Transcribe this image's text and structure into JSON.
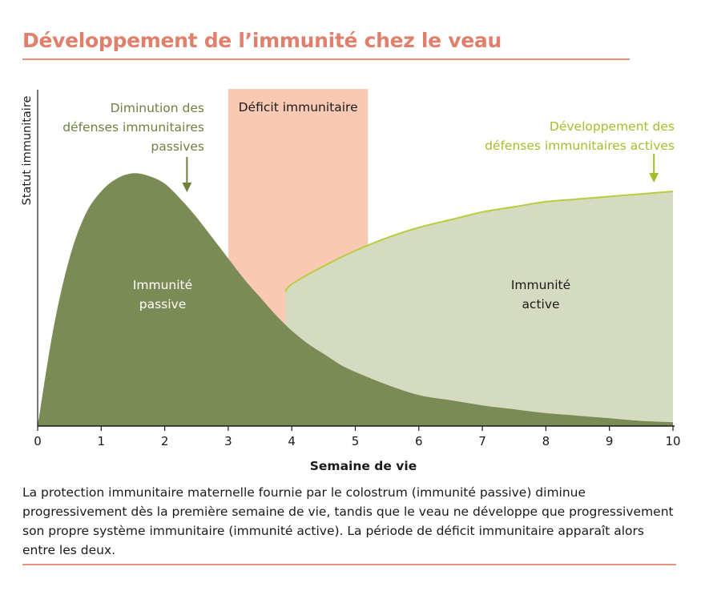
{
  "title": "Développement de l’immunité chez le veau",
  "caption": "La protection immunitaire maternelle fournie par le colostrum (immunité passive) diminue progressivement dès la première semaine de vie, tandis que le veau ne développe que progressivement son propre système immunitaire (immunité active). La période de déficit immunitaire apparaît alors entre les deux.",
  "colors": {
    "title": "#e0806c",
    "rule": "#e8907c",
    "passive_fill": "#7b8b55",
    "active_fill": "#d5dbc1",
    "active_line": "#b9cd3c",
    "deficit_band": "#f9c9b3",
    "passive_label": "#6f8040",
    "active_label": "#a6bd2a"
  },
  "chart_data": {
    "type": "area",
    "xlabel": "Semaine de vie",
    "ylabel": "Statut immunitaire",
    "xlim": [
      0,
      10
    ],
    "xticks": [
      0,
      1,
      2,
      3,
      4,
      5,
      6,
      7,
      8,
      9,
      10
    ],
    "y_ticks_shown": false,
    "grid": false,
    "band": {
      "label": "Déficit immunitaire",
      "x_start": 3,
      "x_end": 5.2
    },
    "series": [
      {
        "name": "Immunité passive",
        "x": [
          0,
          0.25,
          0.5,
          0.75,
          1,
          1.25,
          1.5,
          1.75,
          2,
          2.25,
          2.5,
          2.75,
          3,
          3.25,
          3.5,
          3.75,
          4,
          4.25,
          4.5,
          4.75,
          5,
          5.5,
          6,
          6.5,
          7,
          7.5,
          8,
          8.5,
          9,
          9.5,
          10
        ],
        "y": [
          0,
          0.38,
          0.65,
          0.82,
          0.91,
          0.96,
          0.98,
          0.97,
          0.94,
          0.88,
          0.81,
          0.73,
          0.65,
          0.57,
          0.5,
          0.43,
          0.37,
          0.32,
          0.28,
          0.24,
          0.21,
          0.16,
          0.12,
          0.1,
          0.08,
          0.065,
          0.05,
          0.04,
          0.03,
          0.02,
          0.015
        ]
      },
      {
        "name": "Immunité active",
        "x": [
          3.9,
          4,
          4.5,
          5,
          5.5,
          6,
          6.5,
          7,
          7.5,
          8,
          8.5,
          9,
          9.5,
          10
        ],
        "y": [
          0.52,
          0.55,
          0.62,
          0.68,
          0.73,
          0.77,
          0.8,
          0.83,
          0.85,
          0.87,
          0.88,
          0.89,
          0.9,
          0.91
        ]
      }
    ],
    "annotations": [
      {
        "lines": [
          "Diminution des",
          "défenses immunitaires",
          "passives"
        ],
        "arrow_to_x": 2.35
      },
      {
        "lines": [
          "Développement des",
          "défenses immunitaires actives"
        ],
        "arrow_to_x": 9.7
      }
    ],
    "area_labels": [
      {
        "lines": [
          "Immunité",
          "passive"
        ]
      },
      {
        "lines": [
          "Immunité",
          "active"
        ]
      }
    ]
  }
}
